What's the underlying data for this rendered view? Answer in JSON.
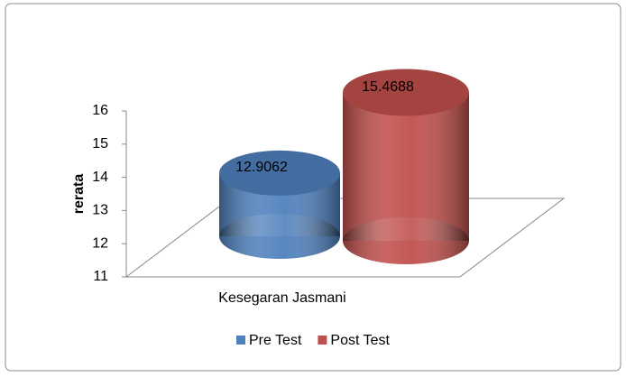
{
  "chart_data": {
    "type": "cylinder-bar",
    "y_label": "rerata",
    "categories": [
      "Kesegaran Jasmani"
    ],
    "series": [
      {
        "name": "Pre Test",
        "color": "#4f81bd",
        "values": [
          12.9062
        ]
      },
      {
        "name": "Post Test",
        "color": "#c0504d",
        "values": [
          15.4688
        ]
      }
    ],
    "ylim": [
      11,
      16
    ],
    "yticks": [
      11,
      12,
      13,
      14,
      15,
      16
    ],
    "legend": "bottom"
  }
}
